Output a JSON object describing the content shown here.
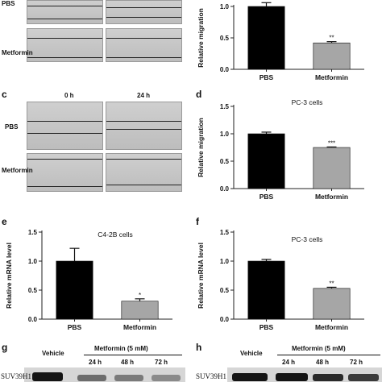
{
  "panels": {
    "c": "c",
    "d": "d",
    "e": "e",
    "f": "f",
    "g": "g",
    "h": "h"
  },
  "micrographs": {
    "top_row1_label": "PBS",
    "top_row2_label": "Metformin",
    "c_col1": "0 h",
    "c_col2": "24 h",
    "c_row1_label": "PBS",
    "c_row2_label": "Metformin"
  },
  "blots": {
    "g": {
      "vehicle": "Vehicle",
      "treatment": "Metformin (5 mM)",
      "times": [
        "24 h",
        "48 h",
        "72 h"
      ],
      "protein": "SUV39H1"
    },
    "h": {
      "vehicle": "Vehicle",
      "treatment": "Metformin (5 mM)",
      "times": [
        "24 h",
        "48 h",
        "72 h"
      ],
      "protein": "SUV39H1"
    }
  },
  "colors": {
    "pbs_bar": "#000000",
    "metformin_bar": "#a6a6a6"
  },
  "chart_data": [
    {
      "id": "b",
      "type": "bar",
      "title": "",
      "categories": [
        "PBS",
        "Metformin"
      ],
      "values": [
        1.0,
        0.42
      ],
      "errors": [
        0.06,
        0.02
      ],
      "significance": [
        "",
        "**"
      ],
      "ylabel": "Relative migration",
      "ylim": [
        0,
        1.0
      ],
      "yticks": [
        "0.0",
        "0.5",
        "1.0"
      ]
    },
    {
      "id": "d",
      "type": "bar",
      "title": "PC-3 cells",
      "categories": [
        "PBS",
        "Metformin"
      ],
      "values": [
        1.0,
        0.75
      ],
      "errors": [
        0.03,
        0.01
      ],
      "significance": [
        "",
        "***"
      ],
      "ylabel": "Relative migration",
      "ylim": [
        0,
        1.5
      ],
      "yticks": [
        "0.0",
        "0.5",
        "1.0",
        "1.5"
      ]
    },
    {
      "id": "e",
      "type": "bar",
      "title": "C4-2B cells",
      "categories": [
        "PBS",
        "Metformin"
      ],
      "values": [
        1.0,
        0.31
      ],
      "errors": [
        0.22,
        0.04
      ],
      "significance": [
        "",
        "*"
      ],
      "ylabel": "Relative mRNA level",
      "ylim": [
        0,
        1.5
      ],
      "yticks": [
        "0.0",
        "0.5",
        "1.0",
        "1.5"
      ]
    },
    {
      "id": "f",
      "type": "bar",
      "title": "PC-3 cells",
      "categories": [
        "PBS",
        "Metformin"
      ],
      "values": [
        1.0,
        0.53
      ],
      "errors": [
        0.03,
        0.02
      ],
      "significance": [
        "",
        "**"
      ],
      "ylabel": "Relative mRNA level",
      "ylim": [
        0,
        1.5
      ],
      "yticks": [
        "0.0",
        "0.5",
        "1.0",
        "1.5"
      ]
    }
  ]
}
